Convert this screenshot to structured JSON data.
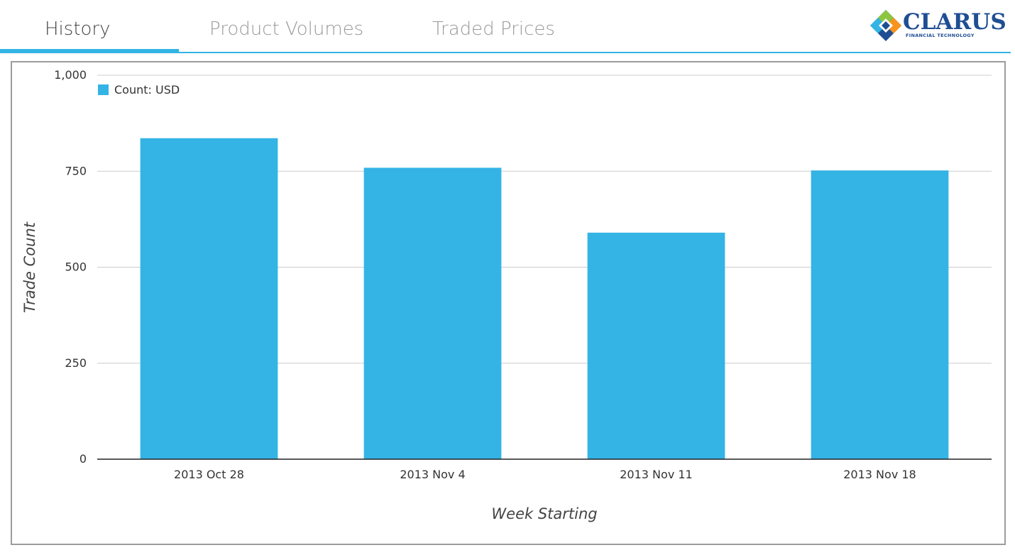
{
  "tabs": [
    {
      "label": "History",
      "active": true
    },
    {
      "label": "Product Volumes",
      "active": false
    },
    {
      "label": "Traded Prices",
      "active": false
    }
  ],
  "logo": {
    "name": "CLARUS",
    "tagline": "FINANCIAL TECHNOLOGY",
    "colors": {
      "navy": "#1f4e93",
      "green": "#8cc63f",
      "orange": "#f7941d",
      "blue": "#33b4e5"
    }
  },
  "accent_color": "#33b4e5",
  "chart_data": {
    "type": "bar",
    "title": "",
    "xlabel": "Week Starting",
    "ylabel": "Trade Count",
    "categories": [
      "2013 Oct 28",
      "2013 Nov 4",
      "2013 Nov 11",
      "2013 Nov 18"
    ],
    "series": [
      {
        "name": "Count: USD",
        "color": "#33b4e5",
        "values": [
          836,
          759,
          590,
          752
        ]
      }
    ],
    "ylim": [
      0,
      1000
    ],
    "yticks": [
      0,
      250,
      500,
      750,
      1000
    ],
    "ytick_labels": [
      "0",
      "250",
      "500",
      "750",
      "1,000"
    ],
    "grid": true,
    "legend_position": "top-left"
  }
}
